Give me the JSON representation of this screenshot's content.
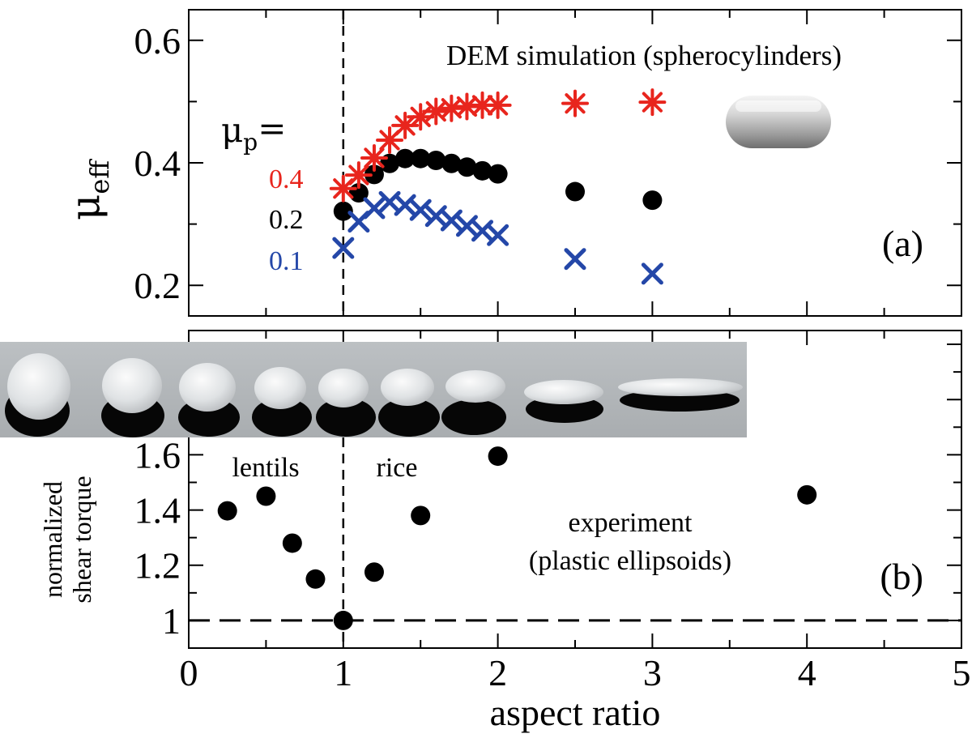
{
  "chart_data": [
    {
      "panel": "(a)",
      "type": "scatter",
      "title": "DEM simulation (spherocylinders)",
      "ylabel_main": "μ",
      "ylabel_sub": "eff",
      "legend_title_main": "μ",
      "legend_title_sub": "p",
      "legend_title_suffix": "=",
      "panel_label": "(a)",
      "xlim": [
        0,
        5
      ],
      "ylim": [
        0.15,
        0.65
      ],
      "yticks": [
        0.2,
        0.4,
        0.6
      ],
      "ytick_labels": [
        "0.2",
        "0.4",
        "0.6"
      ],
      "grid": false,
      "series": [
        {
          "name": "0.4",
          "color": "#e8251d",
          "marker": "asterisk",
          "x": [
            1.0,
            1.1,
            1.2,
            1.3,
            1.4,
            1.5,
            1.6,
            1.7,
            1.8,
            1.9,
            2.0,
            2.5,
            3.0
          ],
          "y": [
            0.358,
            0.38,
            0.408,
            0.437,
            0.461,
            0.475,
            0.484,
            0.489,
            0.492,
            0.494,
            0.494,
            0.497,
            0.499
          ]
        },
        {
          "name": "0.2",
          "color": "#000000",
          "marker": "circle",
          "x": [
            1.0,
            1.1,
            1.2,
            1.3,
            1.4,
            1.5,
            1.6,
            1.7,
            1.8,
            1.9,
            2.0,
            2.5,
            3.0
          ],
          "y": [
            0.321,
            0.351,
            0.381,
            0.399,
            0.407,
            0.407,
            0.404,
            0.399,
            0.393,
            0.387,
            0.382,
            0.353,
            0.339
          ]
        },
        {
          "name": "0.1",
          "color": "#2447a8",
          "marker": "x",
          "x": [
            1.0,
            1.1,
            1.2,
            1.3,
            1.4,
            1.5,
            1.6,
            1.7,
            1.8,
            1.9,
            2.0,
            2.5,
            3.0
          ],
          "y": [
            0.261,
            0.304,
            0.326,
            0.336,
            0.331,
            0.323,
            0.313,
            0.306,
            0.297,
            0.289,
            0.282,
            0.243,
            0.219
          ]
        }
      ],
      "vline_x": 1
    },
    {
      "panel": "(b)",
      "type": "scatter",
      "ylabel_line1": "normalized",
      "ylabel_line2": "shear torque",
      "xlabel": "aspect ratio",
      "panel_label": "(b)",
      "label_lentils": "lentils",
      "label_rice": "rice",
      "annotation_line1": "experiment",
      "annotation_line2": "(plastic ellipsoids)",
      "xlim": [
        0,
        5
      ],
      "ylim": [
        0.9,
        2.05
      ],
      "xticks": [
        0,
        1,
        2,
        3,
        4,
        5
      ],
      "xtick_labels": [
        "0",
        "1",
        "2",
        "3",
        "4",
        "5"
      ],
      "yticks": [
        1,
        1.2,
        1.4,
        1.6
      ],
      "ytick_labels": [
        "1",
        "1.2",
        "1.4",
        "1.6"
      ],
      "grid": false,
      "hline_y": 1,
      "vline_x": 1,
      "series": [
        {
          "color": "#000000",
          "marker": "circle",
          "x": [
            0.25,
            0.5,
            0.67,
            0.82,
            1.0,
            1.2,
            1.5,
            2.0,
            4.0
          ],
          "y": [
            1.397,
            1.45,
            1.28,
            1.15,
            1.0,
            1.175,
            1.38,
            1.595,
            1.455
          ]
        }
      ]
    }
  ]
}
